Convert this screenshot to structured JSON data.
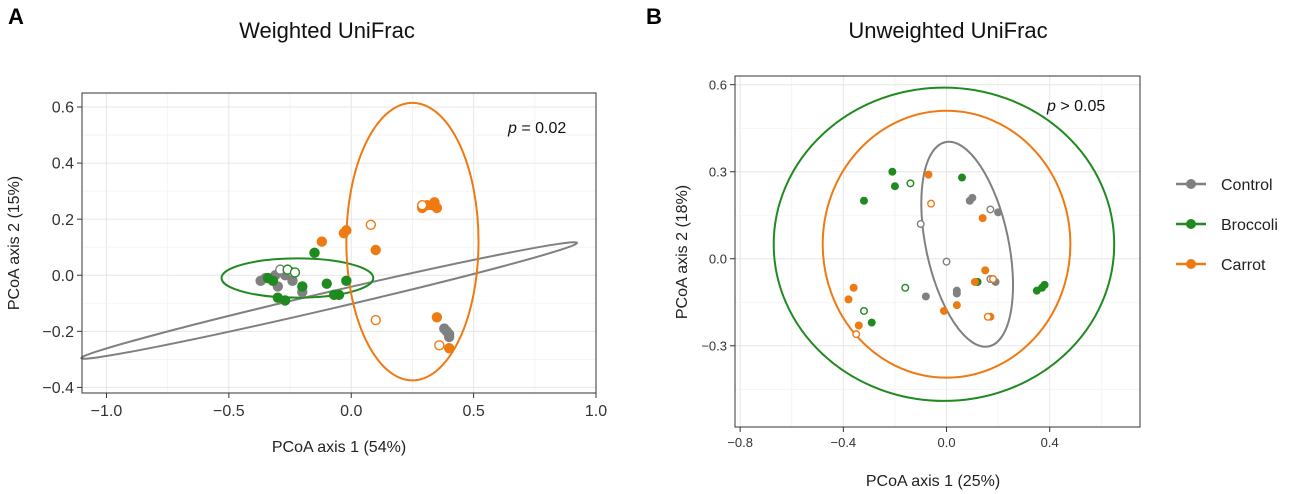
{
  "chart_data": [
    {
      "type": "scatter",
      "panel_label": "A",
      "title": "Weighted UniFrac",
      "xlabel": "PCoA axis 1 (54%)",
      "ylabel": "PCoA axis 2 (15%)",
      "xlim": [
        -1.1,
        1.0
      ],
      "ylim": [
        -0.42,
        0.65
      ],
      "xticks": [
        -1.0,
        -0.5,
        0.0,
        0.5,
        1.0
      ],
      "xtick_labels": [
        "−1.0",
        "−0.5",
        "0.0",
        "0.5",
        "1.0"
      ],
      "yticks": [
        -0.4,
        -0.2,
        0.0,
        0.2,
        0.4,
        0.6
      ],
      "ytick_labels": [
        "−0.4",
        "−0.2",
        "0.0",
        "0.2",
        "0.4",
        "0.6"
      ],
      "annotation_p": "p",
      "annotation_rest": " = 0.02",
      "series": [
        {
          "name": "Control",
          "color": "#808080",
          "filled": [
            [
              -0.37,
              -0.02
            ],
            [
              -0.35,
              -0.01
            ],
            [
              -0.31,
              0.0
            ],
            [
              -0.3,
              -0.04
            ],
            [
              -0.27,
              0.0
            ],
            [
              -0.24,
              -0.02
            ],
            [
              -0.2,
              -0.06
            ],
            [
              0.38,
              -0.19
            ],
            [
              0.39,
              -0.2
            ],
            [
              0.4,
              -0.21
            ],
            [
              0.4,
              -0.22
            ]
          ],
          "open": [
            [
              -0.29,
              0.02
            ],
            [
              -0.24,
              0.01
            ]
          ],
          "ellipse": {
            "cx": -0.09,
            "cy": -0.09,
            "rx": 1.04,
            "ry": 0.03,
            "angle_deg": -13.1
          }
        },
        {
          "name": "Broccoli",
          "color": "#1f8a1f",
          "filled": [
            [
              -0.34,
              -0.01
            ],
            [
              -0.32,
              -0.02
            ],
            [
              -0.3,
              -0.08
            ],
            [
              -0.27,
              -0.09
            ],
            [
              -0.2,
              -0.04
            ],
            [
              -0.15,
              0.08
            ],
            [
              -0.1,
              -0.03
            ],
            [
              -0.07,
              -0.07
            ],
            [
              -0.05,
              -0.07
            ],
            [
              -0.02,
              -0.02
            ]
          ],
          "open": [
            [
              -0.26,
              0.02
            ],
            [
              -0.23,
              0.01
            ]
          ],
          "ellipse": {
            "cx": -0.22,
            "cy": -0.01,
            "rx": 0.31,
            "ry": 0.07,
            "angle_deg": 0
          }
        },
        {
          "name": "Carrot",
          "color": "#ee7a12",
          "filled": [
            [
              -0.12,
              0.12
            ],
            [
              -0.03,
              0.15
            ],
            [
              -0.02,
              0.16
            ],
            [
              0.1,
              0.09
            ],
            [
              0.29,
              0.24
            ],
            [
              0.31,
              0.25
            ],
            [
              0.33,
              0.25
            ],
            [
              0.34,
              0.26
            ],
            [
              0.35,
              0.24
            ],
            [
              0.35,
              -0.15
            ],
            [
              0.4,
              -0.26
            ]
          ],
          "open": [
            [
              0.08,
              0.18
            ],
            [
              0.1,
              -0.16
            ],
            [
              0.29,
              0.25
            ],
            [
              0.36,
              -0.25
            ]
          ],
          "ellipse": {
            "cx": 0.25,
            "cy": 0.12,
            "rx": 0.27,
            "ry": 0.495,
            "angle_deg": 0
          }
        }
      ]
    },
    {
      "type": "scatter",
      "panel_label": "B",
      "title": "Unweighted UniFrac",
      "xlabel": "PCoA axis 1 (25%)",
      "ylabel": "PCoA axis 2 (18%)",
      "xlim": [
        -0.82,
        0.75
      ],
      "ylim": [
        -0.58,
        0.63
      ],
      "xticks": [
        -0.8,
        -0.4,
        0.0,
        0.4
      ],
      "xtick_labels": [
        "−0.8",
        "−0.4",
        "0.0",
        "0.4"
      ],
      "yticks": [
        -0.3,
        0.0,
        0.3,
        0.6
      ],
      "ytick_labels": [
        "−0.3",
        "0.0",
        "0.3",
        "0.6"
      ],
      "annotation_p": "p",
      "annotation_rest": " > 0.05",
      "series": [
        {
          "name": "Control",
          "color": "#808080",
          "filled": [
            [
              -0.08,
              -0.13
            ],
            [
              0.04,
              -0.11
            ],
            [
              0.04,
              -0.12
            ],
            [
              0.09,
              0.2
            ],
            [
              0.1,
              0.21
            ],
            [
              0.12,
              -0.08
            ],
            [
              0.18,
              -0.07
            ],
            [
              0.19,
              -0.08
            ],
            [
              0.2,
              0.16
            ]
          ],
          "open": [
            [
              -0.1,
              0.12
            ],
            [
              0.0,
              -0.01
            ],
            [
              0.17,
              0.17
            ],
            [
              0.17,
              -0.07
            ]
          ],
          "ellipse": {
            "cx": 0.08,
            "cy": 0.05,
            "rx": 0.16,
            "ry": 0.36,
            "angle_deg": -12
          }
        },
        {
          "name": "Broccoli",
          "color": "#1f8a1f",
          "filled": [
            [
              -0.32,
              0.2
            ],
            [
              -0.29,
              -0.22
            ],
            [
              -0.21,
              0.3
            ],
            [
              -0.2,
              0.25
            ],
            [
              0.06,
              0.28
            ],
            [
              0.12,
              -0.08
            ],
            [
              0.35,
              -0.11
            ],
            [
              0.37,
              -0.1
            ],
            [
              0.38,
              -0.09
            ]
          ],
          "open": [
            [
              -0.32,
              -0.18
            ],
            [
              -0.14,
              0.26
            ],
            [
              -0.16,
              -0.1
            ]
          ],
          "ellipse": {
            "cx": -0.01,
            "cy": 0.05,
            "rx": 0.66,
            "ry": 0.54,
            "angle_deg": 0
          }
        },
        {
          "name": "Carrot",
          "color": "#ee7a12",
          "filled": [
            [
              -0.38,
              -0.14
            ],
            [
              -0.36,
              -0.1
            ],
            [
              -0.34,
              -0.23
            ],
            [
              -0.07,
              0.29
            ],
            [
              -0.01,
              -0.18
            ],
            [
              0.04,
              -0.16
            ],
            [
              0.11,
              -0.08
            ],
            [
              0.14,
              0.14
            ],
            [
              0.15,
              -0.04
            ],
            [
              0.17,
              -0.2
            ]
          ],
          "open": [
            [
              -0.35,
              -0.26
            ],
            [
              -0.06,
              0.19
            ],
            [
              0.16,
              -0.2
            ],
            [
              0.18,
              -0.07
            ]
          ],
          "ellipse": {
            "cx": 0.0,
            "cy": 0.05,
            "rx": 0.48,
            "ry": 0.46,
            "angle_deg": 0
          }
        }
      ]
    }
  ],
  "legend": {
    "entries": [
      {
        "label": "Control",
        "color": "#808080"
      },
      {
        "label": "Broccoli",
        "color": "#1f8a1f"
      },
      {
        "label": "Carrot",
        "color": "#ee7a12"
      }
    ]
  }
}
